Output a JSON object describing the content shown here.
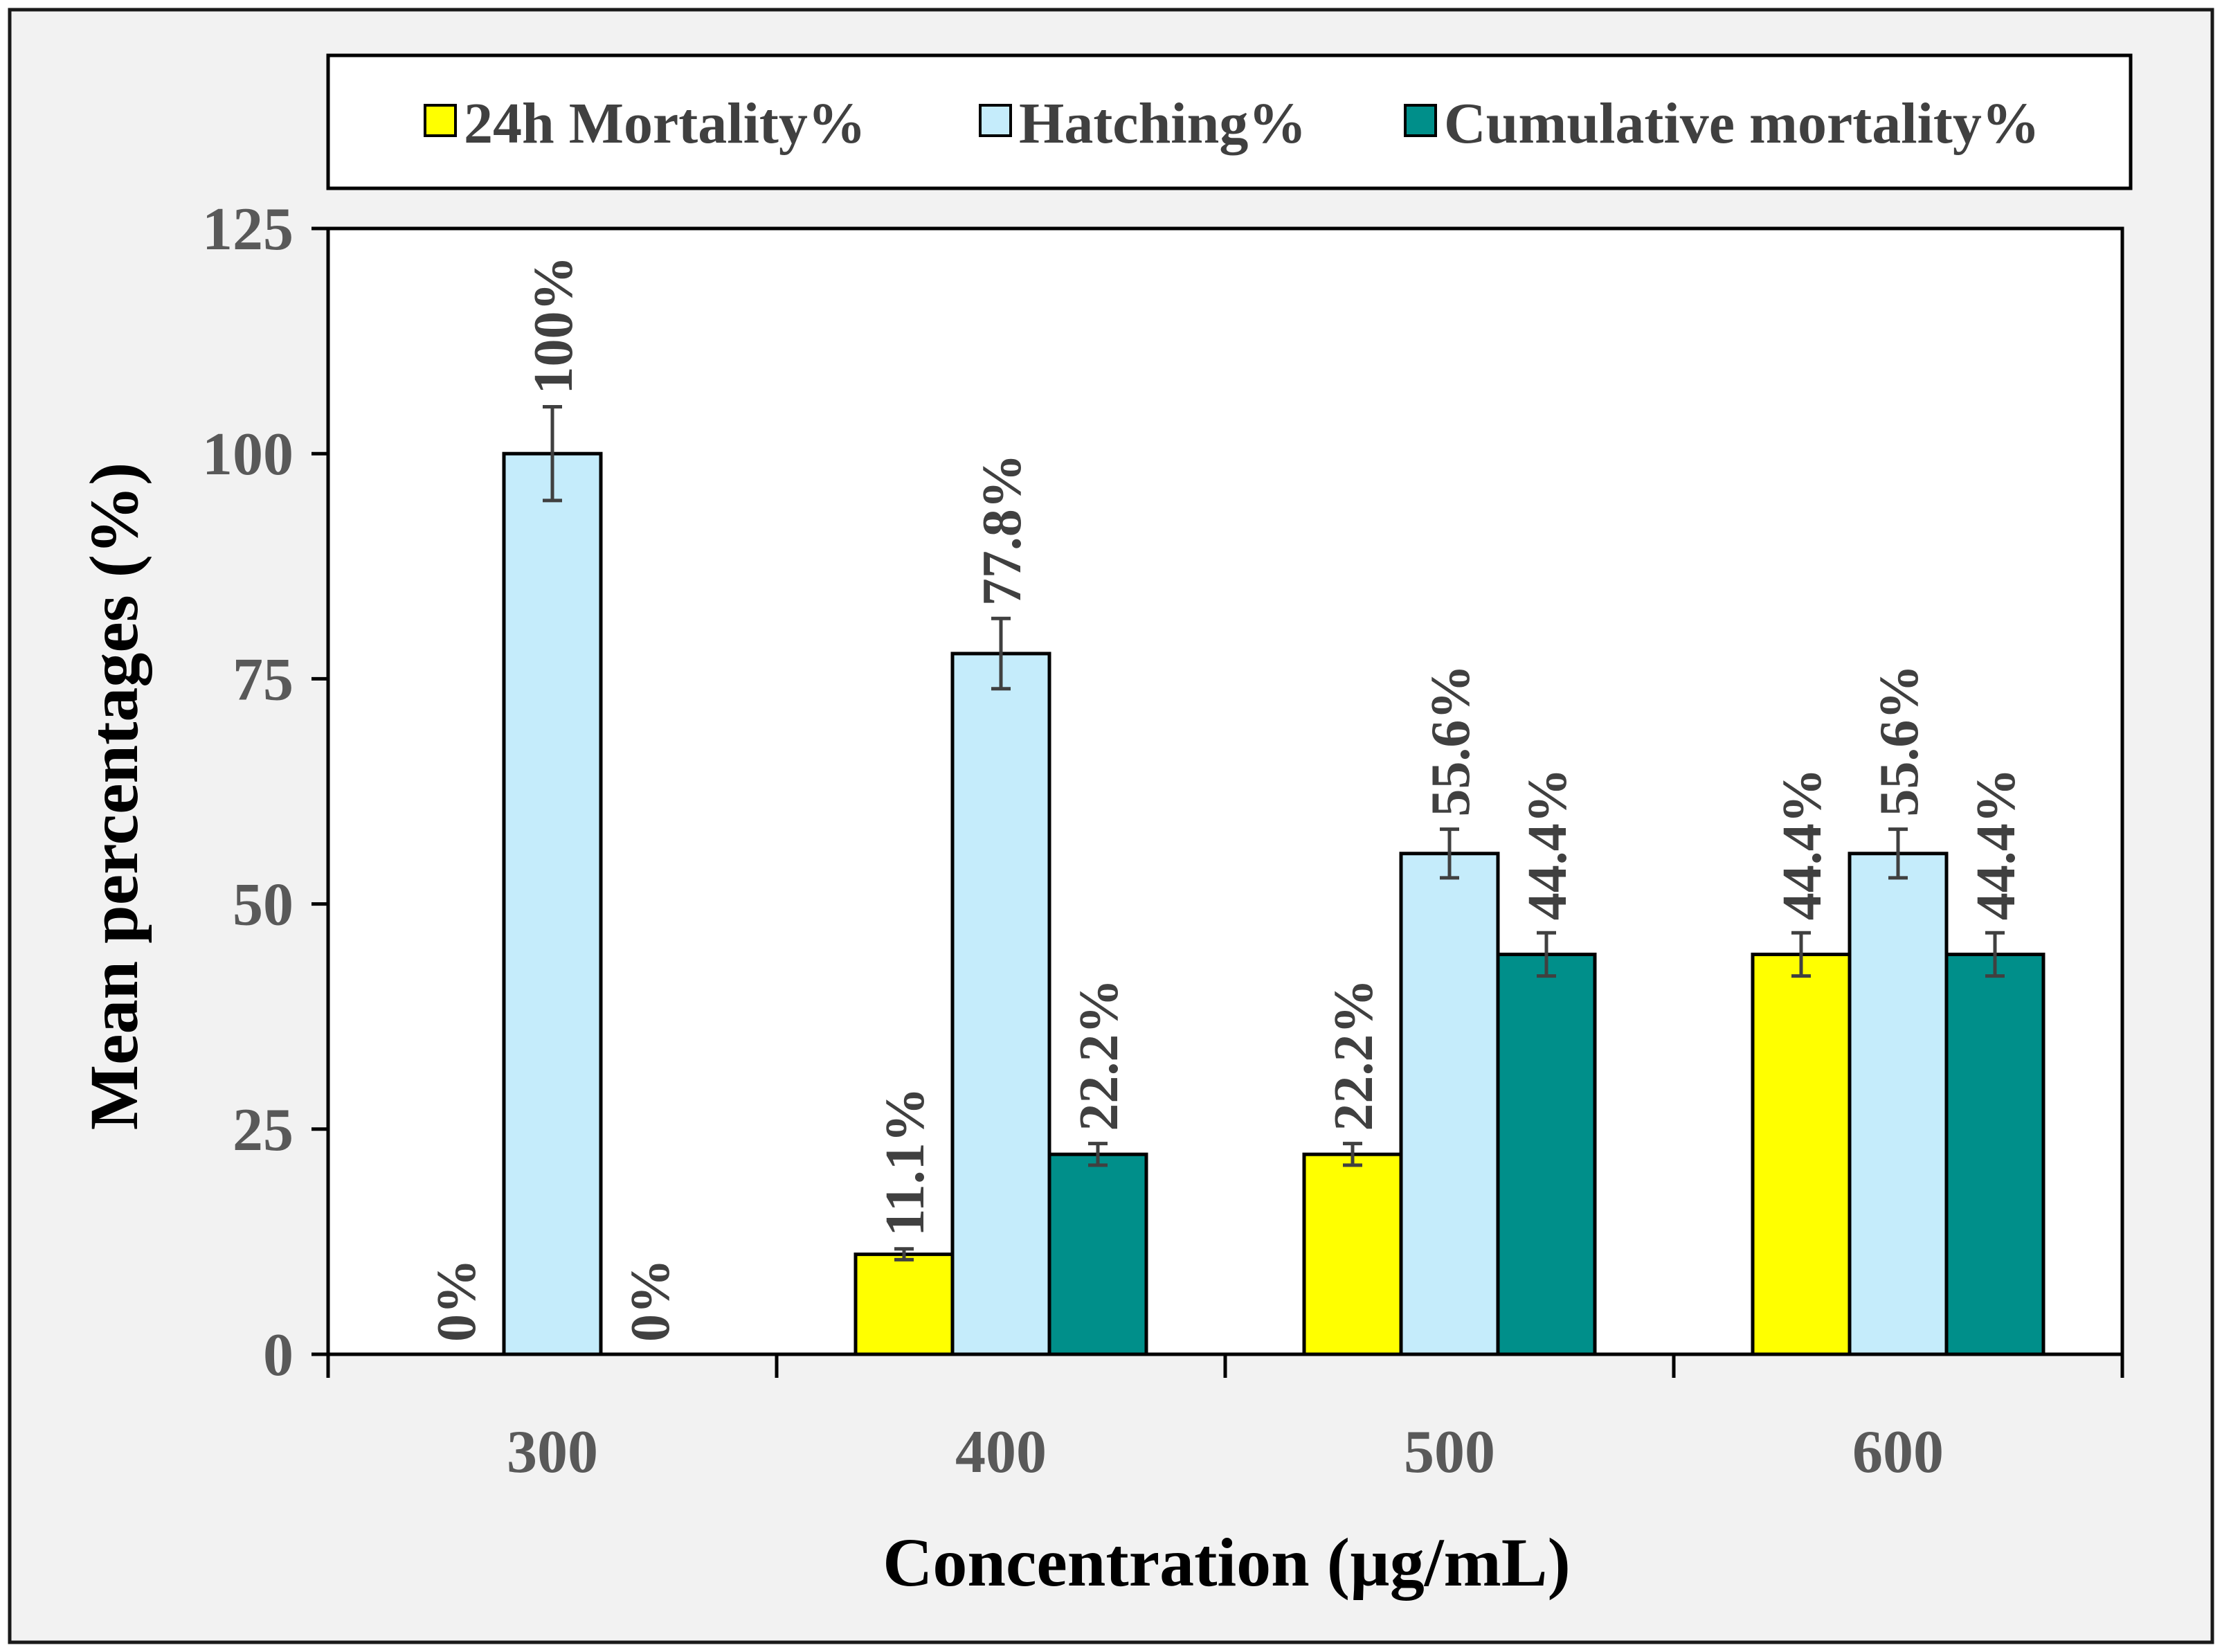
{
  "chart_data": {
    "type": "bar",
    "xlabel": "Concentration (µg/mL)",
    "ylabel": "Mean percentages (%)",
    "ylim": [
      0,
      125
    ],
    "yticks": [
      "0",
      "25",
      "50",
      "75",
      "100",
      "125"
    ],
    "categories": [
      "300",
      "400",
      "500",
      "600"
    ],
    "legend_position": "top",
    "series": [
      {
        "name": "24h Mortality%",
        "color": "#ffff00",
        "values": [
          0,
          11.1,
          22.2,
          44.4
        ],
        "errors": [
          0,
          0.6,
          1.2,
          2.4
        ],
        "labels": [
          "0%",
          "11.1%",
          "22.2%",
          "44.4%"
        ]
      },
      {
        "name": "Hatching%",
        "color": "#c5ecfb",
        "values": [
          100,
          77.8,
          55.6,
          55.6
        ],
        "errors": [
          5.2,
          3.9,
          2.7,
          2.7
        ],
        "labels": [
          "100%",
          "77.8%",
          "55.6%",
          "55.6%"
        ]
      },
      {
        "name": "Cumulative  mortality%",
        "color": "#008f8a",
        "values": [
          0,
          22.2,
          44.4,
          44.4
        ],
        "errors": [
          0,
          1.2,
          2.4,
          2.4
        ],
        "labels": [
          "0%",
          "22.2%",
          "44.4%",
          "44.4%"
        ]
      }
    ]
  }
}
